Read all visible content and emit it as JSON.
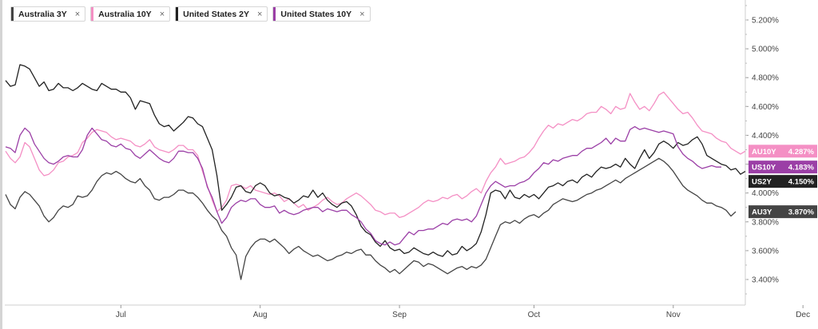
{
  "legend": [
    {
      "label": "Australia 3Y",
      "color": "#444444"
    },
    {
      "label": "Australia 10Y",
      "color": "#f48fc4"
    },
    {
      "label": "United States 2Y",
      "color": "#222222"
    },
    {
      "label": "United States 10Y",
      "color": "#9b3fa6"
    }
  ],
  "close_glyph": "×",
  "chart_data": {
    "type": "line",
    "y_tick_labels": [
      "5.200%",
      "5.000%",
      "4.800%",
      "4.600%",
      "4.400%",
      "4.200%",
      "4.000%",
      "3.800%",
      "3.600%",
      "3.400%"
    ],
    "y_tick_values": [
      5.2,
      5.0,
      4.8,
      4.6,
      4.4,
      4.2,
      4.0,
      3.8,
      3.6,
      3.4
    ],
    "x_tick_labels": [
      "Jul",
      "Aug",
      "Sep",
      "Oct",
      "Nov",
      "Dec"
    ],
    "x_tick_index": [
      24,
      53,
      82,
      110,
      139,
      166
    ],
    "ylim": [
      3.225,
      5.325
    ],
    "series": [
      {
        "name": "Australia 3Y",
        "tag": "AU3Y",
        "last": "3.870%",
        "color": "#444444",
        "values": [
          3.99,
          3.92,
          3.89,
          3.97,
          4.01,
          3.99,
          3.95,
          3.91,
          3.84,
          3.8,
          3.83,
          3.88,
          3.91,
          3.9,
          3.92,
          3.98,
          3.97,
          3.98,
          4.02,
          4.08,
          4.12,
          4.14,
          4.13,
          4.15,
          4.13,
          4.1,
          4.08,
          4.07,
          4.1,
          4.05,
          4.02,
          3.96,
          3.95,
          3.97,
          3.97,
          3.99,
          4.02,
          4.02,
          4.0,
          4.0,
          3.97,
          3.93,
          3.88,
          3.84,
          3.81,
          3.74,
          3.7,
          3.62,
          3.57,
          3.4,
          3.56,
          3.62,
          3.66,
          3.68,
          3.68,
          3.66,
          3.68,
          3.65,
          3.62,
          3.58,
          3.61,
          3.63,
          3.6,
          3.58,
          3.56,
          3.57,
          3.55,
          3.53,
          3.54,
          3.56,
          3.57,
          3.59,
          3.58,
          3.6,
          3.61,
          3.57,
          3.57,
          3.53,
          3.5,
          3.48,
          3.45,
          3.47,
          3.44,
          3.47,
          3.5,
          3.53,
          3.52,
          3.49,
          3.51,
          3.5,
          3.48,
          3.46,
          3.44,
          3.46,
          3.48,
          3.49,
          3.47,
          3.49,
          3.48,
          3.5,
          3.54,
          3.62,
          3.7,
          3.78,
          3.8,
          3.79,
          3.81,
          3.79,
          3.82,
          3.84,
          3.85,
          3.83,
          3.86,
          3.88,
          3.92,
          3.94,
          3.96,
          3.95,
          3.94,
          3.95,
          3.97,
          3.99,
          4.0,
          4.02,
          4.03,
          4.05,
          4.07,
          4.09,
          4.07,
          4.1,
          4.12,
          4.14,
          4.16,
          4.18,
          4.2,
          4.22,
          4.24,
          4.22,
          4.19,
          4.15,
          4.1,
          4.05,
          4.02,
          4.0,
          3.98,
          3.95,
          3.93,
          3.93,
          3.91,
          3.9,
          3.88,
          3.84,
          3.87
        ]
      },
      {
        "name": "Australia 10Y",
        "tag": "AU10Y",
        "last": "4.287%",
        "color": "#f48fc4",
        "values": [
          4.29,
          4.24,
          4.21,
          4.25,
          4.35,
          4.32,
          4.24,
          4.16,
          4.12,
          4.13,
          4.16,
          4.21,
          4.22,
          4.25,
          4.26,
          4.28,
          4.35,
          4.38,
          4.42,
          4.44,
          4.43,
          4.42,
          4.39,
          4.37,
          4.38,
          4.37,
          4.36,
          4.33,
          4.32,
          4.34,
          4.37,
          4.32,
          4.3,
          4.29,
          4.28,
          4.3,
          4.33,
          4.33,
          4.3,
          4.3,
          4.26,
          4.15,
          4.05,
          3.95,
          3.87,
          3.9,
          3.95,
          4.05,
          4.06,
          4.05,
          4.03,
          4.05,
          4.02,
          4.01,
          4.0,
          3.99,
          4.0,
          3.98,
          3.94,
          3.96,
          3.93,
          3.9,
          3.92,
          3.88,
          3.9,
          3.92,
          3.95,
          3.97,
          3.94,
          3.92,
          3.93,
          3.96,
          3.98,
          4.0,
          3.98,
          3.95,
          3.92,
          3.88,
          3.87,
          3.85,
          3.86,
          3.86,
          3.83,
          3.84,
          3.86,
          3.88,
          3.9,
          3.93,
          3.95,
          3.94,
          3.95,
          3.97,
          3.96,
          3.98,
          3.99,
          3.96,
          3.98,
          4.01,
          4.03,
          4.0,
          4.08,
          4.14,
          4.18,
          4.24,
          4.2,
          4.21,
          4.22,
          4.24,
          4.25,
          4.28,
          4.32,
          4.38,
          4.43,
          4.47,
          4.45,
          4.48,
          4.47,
          4.49,
          4.51,
          4.5,
          4.52,
          4.55,
          4.56,
          4.56,
          4.6,
          4.58,
          4.55,
          4.6,
          4.58,
          4.59,
          4.69,
          4.63,
          4.58,
          4.6,
          4.57,
          4.62,
          4.68,
          4.7,
          4.66,
          4.62,
          4.58,
          4.55,
          4.56,
          4.52,
          4.47,
          4.43,
          4.42,
          4.41,
          4.38,
          4.36,
          4.35,
          4.31,
          4.29,
          4.27,
          4.29
        ]
      },
      {
        "name": "United States 2Y",
        "tag": "US2Y",
        "last": "4.150%",
        "color": "#222222",
        "values": [
          4.78,
          4.74,
          4.75,
          4.89,
          4.88,
          4.86,
          4.8,
          4.74,
          4.77,
          4.71,
          4.72,
          4.76,
          4.73,
          4.73,
          4.71,
          4.73,
          4.76,
          4.74,
          4.72,
          4.71,
          4.76,
          4.74,
          4.72,
          4.72,
          4.7,
          4.7,
          4.66,
          4.58,
          4.64,
          4.63,
          4.62,
          4.54,
          4.48,
          4.46,
          4.47,
          4.43,
          4.46,
          4.49,
          4.53,
          4.52,
          4.48,
          4.46,
          4.38,
          4.3,
          4.12,
          3.88,
          3.92,
          3.97,
          4.04,
          4.05,
          4.01,
          4.0,
          4.05,
          4.07,
          4.05,
          4.0,
          3.98,
          3.99,
          3.97,
          3.96,
          3.93,
          3.95,
          3.98,
          3.97,
          4.02,
          3.97,
          4.0,
          3.95,
          3.92,
          3.9,
          3.93,
          3.94,
          3.91,
          3.85,
          3.77,
          3.73,
          3.71,
          3.66,
          3.63,
          3.67,
          3.62,
          3.6,
          3.61,
          3.58,
          3.59,
          3.62,
          3.6,
          3.58,
          3.57,
          3.59,
          3.57,
          3.56,
          3.6,
          3.57,
          3.58,
          3.63,
          3.6,
          3.62,
          3.65,
          3.73,
          3.85,
          4.0,
          4.02,
          4.01,
          3.96,
          4.02,
          3.97,
          3.96,
          3.99,
          3.97,
          3.99,
          3.96,
          4.0,
          4.04,
          4.05,
          4.07,
          4.05,
          4.08,
          4.09,
          4.07,
          4.11,
          4.13,
          4.11,
          4.15,
          4.18,
          4.17,
          4.18,
          4.2,
          4.18,
          4.24,
          4.2,
          4.17,
          4.24,
          4.3,
          4.24,
          4.28,
          4.34,
          4.36,
          4.34,
          4.31,
          4.35,
          4.33,
          4.34,
          4.37,
          4.39,
          4.34,
          4.26,
          4.24,
          4.22,
          4.2,
          4.19,
          4.16,
          4.17,
          4.13,
          4.15
        ]
      },
      {
        "name": "United States 10Y",
        "tag": "US10Y",
        "last": "4.183%",
        "color": "#9b3fa6",
        "values": [
          4.32,
          4.31,
          4.28,
          4.4,
          4.45,
          4.42,
          4.34,
          4.29,
          4.24,
          4.21,
          4.2,
          4.22,
          4.25,
          4.26,
          4.25,
          4.25,
          4.3,
          4.4,
          4.45,
          4.41,
          4.37,
          4.36,
          4.33,
          4.32,
          4.34,
          4.31,
          4.3,
          4.26,
          4.24,
          4.27,
          4.3,
          4.27,
          4.24,
          4.22,
          4.21,
          4.24,
          4.29,
          4.29,
          4.28,
          4.28,
          4.24,
          4.17,
          4.04,
          3.97,
          3.87,
          3.79,
          3.83,
          3.9,
          3.93,
          3.95,
          3.94,
          3.96,
          3.96,
          3.92,
          3.9,
          3.9,
          3.91,
          3.86,
          3.88,
          3.86,
          3.85,
          3.86,
          3.88,
          3.89,
          3.9,
          3.9,
          3.87,
          3.89,
          3.88,
          3.87,
          3.88,
          3.88,
          3.85,
          3.83,
          3.8,
          3.75,
          3.72,
          3.67,
          3.65,
          3.64,
          3.66,
          3.64,
          3.65,
          3.69,
          3.73,
          3.71,
          3.74,
          3.74,
          3.75,
          3.75,
          3.77,
          3.79,
          3.78,
          3.81,
          3.82,
          3.81,
          3.82,
          3.8,
          3.84,
          3.92,
          4.0,
          4.05,
          4.08,
          4.06,
          4.04,
          4.05,
          4.05,
          4.07,
          4.08,
          4.1,
          4.14,
          4.17,
          4.21,
          4.2,
          4.23,
          4.22,
          4.24,
          4.25,
          4.26,
          4.26,
          4.29,
          4.31,
          4.31,
          4.33,
          4.35,
          4.38,
          4.34,
          4.38,
          4.36,
          4.36,
          4.44,
          4.46,
          4.44,
          4.45,
          4.44,
          4.43,
          4.42,
          4.43,
          4.42,
          4.41,
          4.32,
          4.27,
          4.24,
          4.22,
          4.19,
          4.17,
          4.18,
          4.19,
          4.18,
          4.18
        ]
      }
    ]
  }
}
